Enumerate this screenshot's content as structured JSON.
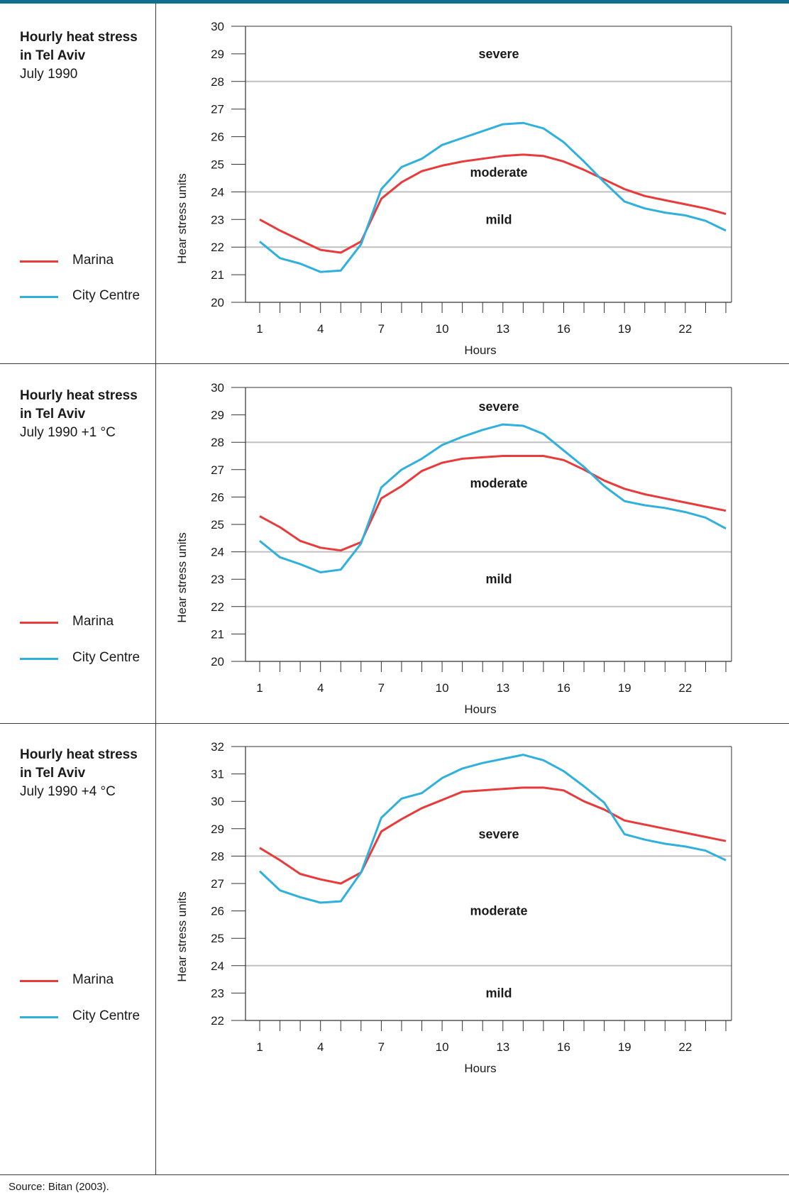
{
  "colors": {
    "marina": "#e83b3b",
    "city_centre": "#2fb0dd",
    "frame": "#0e6f8f"
  },
  "panels": [
    {
      "title_line1": "Hourly heat stress",
      "title_line2": "in Tel Aviv",
      "subtitle": "July 1990"
    },
    {
      "title_line1": "Hourly heat stress",
      "title_line2": "in Tel Aviv",
      "subtitle": "July 1990 +1 °C"
    },
    {
      "title_line1": "Hourly heat stress",
      "title_line2": "in Tel Aviv",
      "subtitle": "July 1990 +4 °C"
    }
  ],
  "legend": {
    "marina": "Marina",
    "city_centre": "City Centre"
  },
  "source": "Source: Bitan (2003).",
  "chart_data": [
    {
      "type": "line",
      "title": "Hourly heat stress in Tel Aviv July 1990",
      "xlabel": "Hours",
      "ylabel": "Hear stress units",
      "xlim": [
        1,
        24
      ],
      "ylim": [
        20,
        30
      ],
      "x_ticks": [
        1,
        4,
        7,
        10,
        13,
        16,
        19,
        22
      ],
      "y_ticks": [
        20,
        21,
        22,
        23,
        24,
        25,
        26,
        27,
        28,
        29,
        30
      ],
      "x": [
        1,
        2,
        3,
        4,
        5,
        6,
        7,
        8,
        9,
        10,
        11,
        12,
        13,
        14,
        15,
        16,
        17,
        18,
        19,
        20,
        21,
        22,
        23,
        24
      ],
      "thresholds": [
        22,
        24,
        28
      ],
      "zones": [
        {
          "label": "severe",
          "y": 29
        },
        {
          "label": "moderate",
          "y": 24.7
        },
        {
          "label": "mild",
          "y": 23
        }
      ],
      "series": [
        {
          "name": "Marina",
          "color": "#e83b3b",
          "values": [
            23.0,
            22.6,
            22.25,
            21.9,
            21.8,
            22.2,
            23.75,
            24.35,
            24.75,
            24.95,
            25.1,
            25.2,
            25.3,
            25.35,
            25.3,
            25.1,
            24.8,
            24.45,
            24.1,
            23.85,
            23.7,
            23.55,
            23.4,
            23.2
          ]
        },
        {
          "name": "City Centre",
          "color": "#2fb0dd",
          "values": [
            22.2,
            21.6,
            21.4,
            21.1,
            21.15,
            22.1,
            24.1,
            24.9,
            25.2,
            25.7,
            25.95,
            26.2,
            26.45,
            26.5,
            26.3,
            25.8,
            25.1,
            24.35,
            23.65,
            23.4,
            23.25,
            23.15,
            22.95,
            22.6
          ]
        }
      ]
    },
    {
      "type": "line",
      "title": "Hourly heat stress in Tel Aviv July 1990 +1 °C",
      "xlabel": "Hours",
      "ylabel": "Hear stress units",
      "xlim": [
        1,
        24
      ],
      "ylim": [
        20,
        30
      ],
      "x_ticks": [
        1,
        4,
        7,
        10,
        13,
        16,
        19,
        22
      ],
      "y_ticks": [
        20,
        21,
        22,
        23,
        24,
        25,
        26,
        27,
        28,
        29,
        30
      ],
      "x": [
        1,
        2,
        3,
        4,
        5,
        6,
        7,
        8,
        9,
        10,
        11,
        12,
        13,
        14,
        15,
        16,
        17,
        18,
        19,
        20,
        21,
        22,
        23,
        24
      ],
      "thresholds": [
        22,
        24,
        28
      ],
      "zones": [
        {
          "label": "severe",
          "y": 29.3
        },
        {
          "label": "moderate",
          "y": 26.5
        },
        {
          "label": "mild",
          "y": 23
        }
      ],
      "series": [
        {
          "name": "Marina",
          "color": "#e83b3b",
          "values": [
            25.3,
            24.9,
            24.4,
            24.15,
            24.05,
            24.35,
            25.95,
            26.4,
            26.95,
            27.25,
            27.4,
            27.45,
            27.5,
            27.5,
            27.5,
            27.35,
            27.0,
            26.6,
            26.3,
            26.1,
            25.95,
            25.8,
            25.65,
            25.5
          ]
        },
        {
          "name": "City Centre",
          "color": "#2fb0dd",
          "values": [
            24.4,
            23.8,
            23.55,
            23.25,
            23.35,
            24.3,
            26.35,
            27.0,
            27.4,
            27.9,
            28.2,
            28.45,
            28.65,
            28.6,
            28.3,
            27.7,
            27.1,
            26.4,
            25.85,
            25.7,
            25.6,
            25.45,
            25.25,
            24.85
          ]
        }
      ]
    },
    {
      "type": "line",
      "title": "Hourly heat stress in Tel Aviv July 1990 +4 °C",
      "xlabel": "Hours",
      "ylabel": "Hear stress units",
      "xlim": [
        1,
        24
      ],
      "ylim": [
        22,
        32
      ],
      "x_ticks": [
        1,
        4,
        7,
        10,
        13,
        16,
        19,
        22
      ],
      "y_ticks": [
        22,
        23,
        24,
        25,
        26,
        27,
        28,
        29,
        30,
        31,
        32
      ],
      "x": [
        1,
        2,
        3,
        4,
        5,
        6,
        7,
        8,
        9,
        10,
        11,
        12,
        13,
        14,
        15,
        16,
        17,
        18,
        19,
        20,
        21,
        22,
        23,
        24
      ],
      "thresholds": [
        24,
        28
      ],
      "zones": [
        {
          "label": "severe",
          "y": 28.8
        },
        {
          "label": "moderate",
          "y": 26
        },
        {
          "label": "mild",
          "y": 23
        }
      ],
      "series": [
        {
          "name": "Marina",
          "color": "#e83b3b",
          "values": [
            28.3,
            27.85,
            27.35,
            27.15,
            27.0,
            27.4,
            28.9,
            29.35,
            29.75,
            30.05,
            30.35,
            30.4,
            30.45,
            30.5,
            30.5,
            30.4,
            30.0,
            29.7,
            29.3,
            29.15,
            29.0,
            28.85,
            28.7,
            28.55
          ]
        },
        {
          "name": "City Centre",
          "color": "#2fb0dd",
          "values": [
            27.45,
            26.75,
            26.5,
            26.3,
            26.35,
            27.4,
            29.4,
            30.1,
            30.3,
            30.85,
            31.2,
            31.4,
            31.55,
            31.7,
            31.5,
            31.1,
            30.55,
            29.95,
            28.8,
            28.6,
            28.45,
            28.35,
            28.2,
            27.85
          ]
        }
      ]
    }
  ]
}
